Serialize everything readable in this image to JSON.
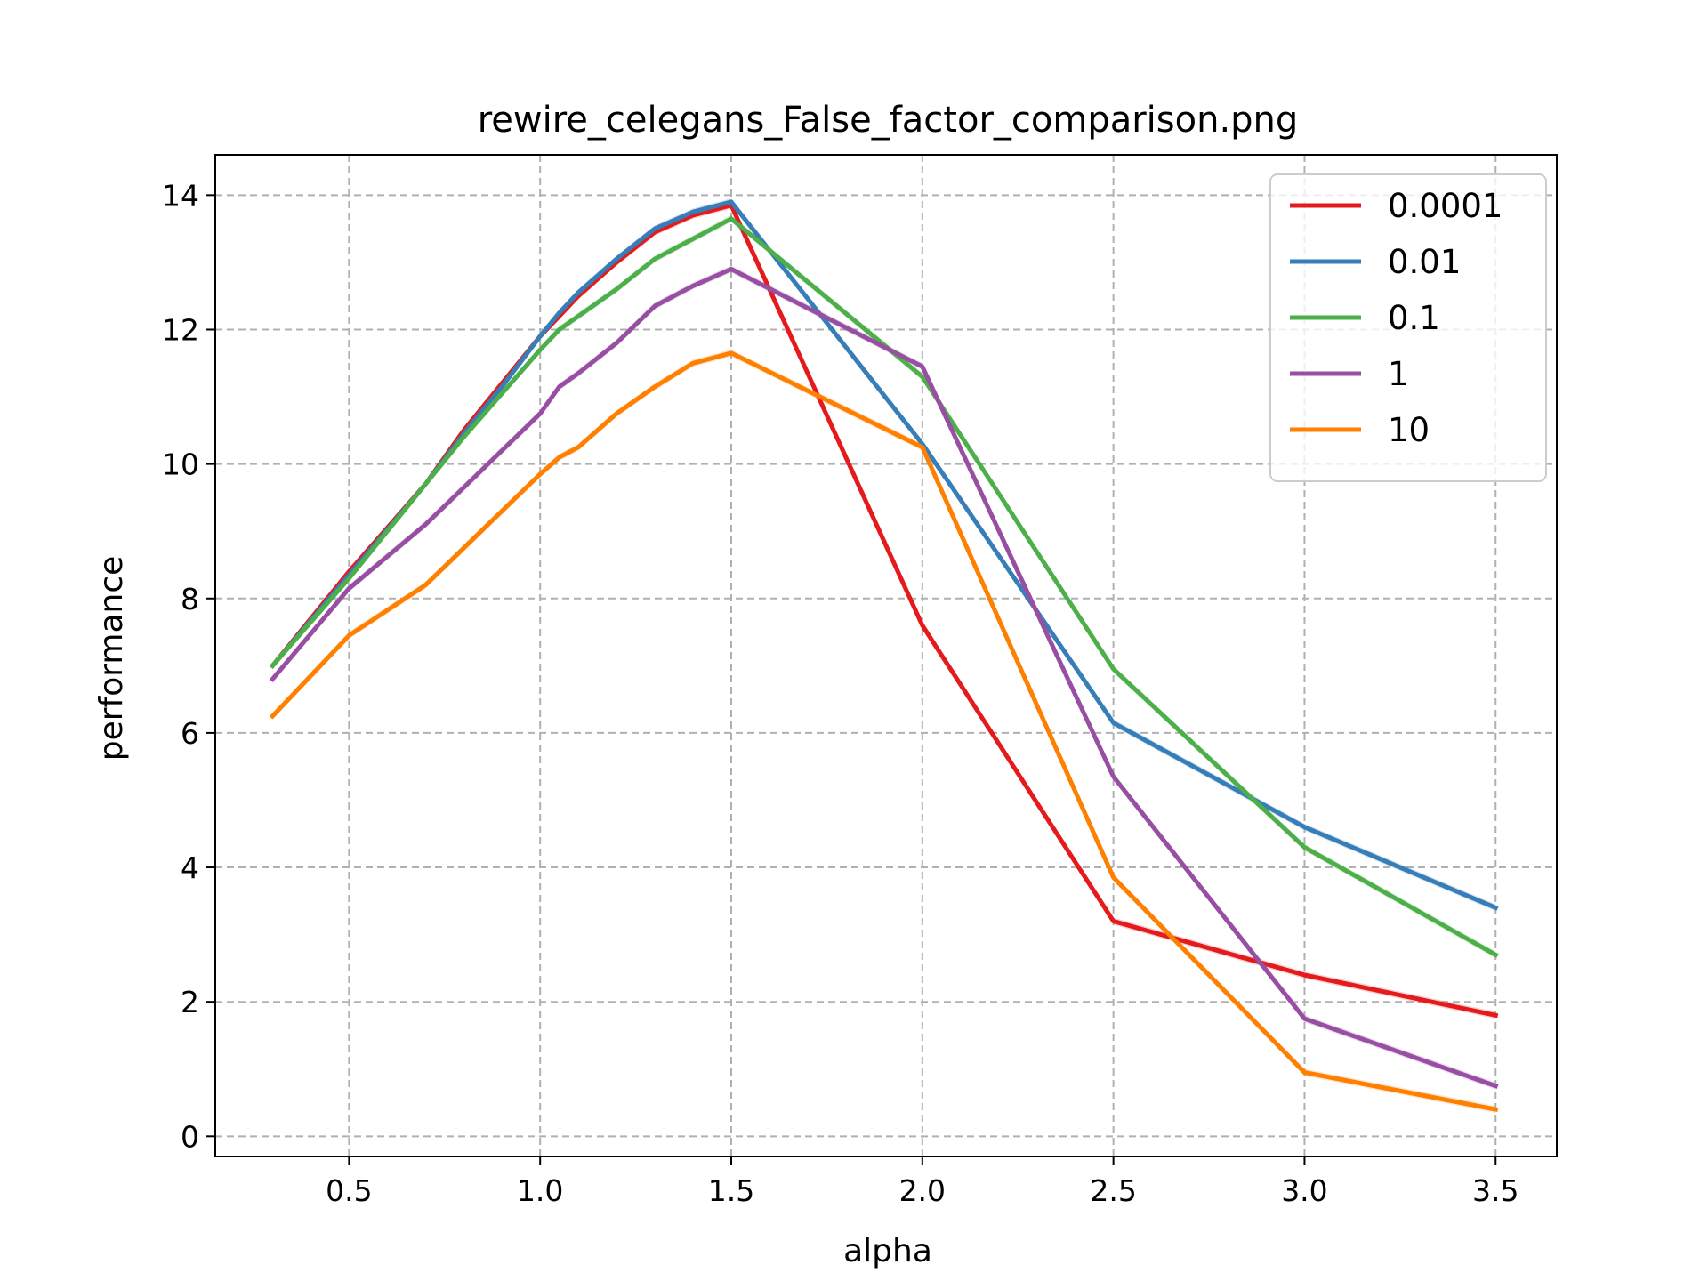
{
  "chart_data": {
    "type": "line",
    "title": "rewire_celegans_False_factor_comparison.png",
    "xlabel": "alpha",
    "ylabel": "performance",
    "xlim": [
      0.15,
      3.66
    ],
    "ylim": [
      -0.3,
      14.6
    ],
    "xticks": [
      0.5,
      1.0,
      1.5,
      2.0,
      2.5,
      3.0,
      3.5
    ],
    "xtick_labels": [
      "0.5",
      "1.0",
      "1.5",
      "2.0",
      "2.5",
      "3.0",
      "3.5"
    ],
    "yticks": [
      0,
      2,
      4,
      6,
      8,
      10,
      12,
      14
    ],
    "ytick_labels": [
      "0",
      "2",
      "4",
      "6",
      "8",
      "10",
      "12",
      "14"
    ],
    "grid": true,
    "legend_position": "top-right",
    "x": [
      0.3,
      0.5,
      0.7,
      0.8,
      0.9,
      1.0,
      1.05,
      1.1,
      1.2,
      1.3,
      1.4,
      1.5,
      2.0,
      2.5,
      3.0,
      3.5
    ],
    "series": [
      {
        "name": "0.0001",
        "color": "#e41a1c",
        "values": [
          7.0,
          8.4,
          9.7,
          10.5,
          11.2,
          11.9,
          12.2,
          12.5,
          13.0,
          13.45,
          13.7,
          13.85,
          7.6,
          3.2,
          2.4,
          1.8
        ]
      },
      {
        "name": "0.01",
        "color": "#377eb8",
        "values": [
          7.0,
          8.35,
          9.7,
          10.45,
          11.15,
          11.9,
          12.25,
          12.55,
          13.05,
          13.5,
          13.75,
          13.9,
          10.3,
          6.15,
          4.6,
          3.4
        ]
      },
      {
        "name": "0.1",
        "color": "#4daf4a",
        "values": [
          7.0,
          8.3,
          9.7,
          10.4,
          11.05,
          11.7,
          12.0,
          12.2,
          12.6,
          13.05,
          13.35,
          13.65,
          11.3,
          6.95,
          4.3,
          2.7
        ]
      },
      {
        "name": "1",
        "color": "#984ea3",
        "values": [
          6.8,
          8.15,
          9.1,
          9.65,
          10.2,
          10.75,
          11.15,
          11.35,
          11.8,
          12.35,
          12.65,
          12.9,
          11.45,
          5.35,
          1.75,
          0.75
        ]
      },
      {
        "name": "10",
        "color": "#ff7f00",
        "values": [
          6.25,
          7.45,
          8.2,
          8.75,
          9.3,
          9.85,
          10.1,
          10.25,
          10.75,
          11.15,
          11.5,
          11.65,
          10.25,
          3.85,
          0.95,
          0.4
        ]
      }
    ]
  }
}
